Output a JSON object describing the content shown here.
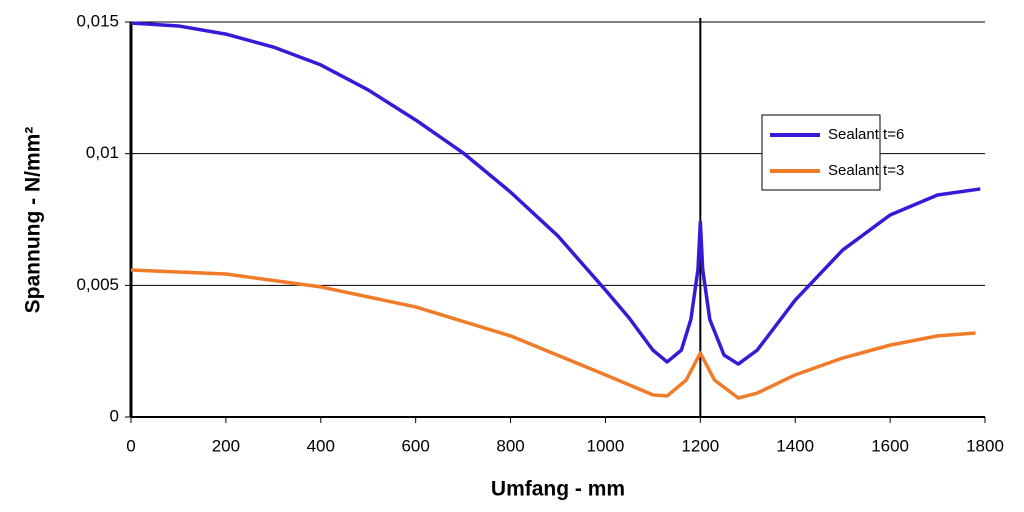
{
  "chart_data": {
    "type": "line",
    "x_label": "Umfang - mm",
    "y_label": "Spannung - N/mm²",
    "xlim": [
      0,
      1800
    ],
    "xticks": [
      0,
      200,
      400,
      600,
      800,
      1000,
      1200,
      1400,
      1600,
      1800
    ],
    "ylim": [
      0,
      0.015
    ],
    "yticks": [
      0,
      {
        "value": 0.005,
        "label": "0,005"
      },
      {
        "value": 0.01,
        "label": "0,01"
      },
      {
        "value": 0.015,
        "label": "0,015"
      }
    ],
    "grid": true,
    "reference_line_x": 1200,
    "legend": "right",
    "series": [
      {
        "name": "Sealant t=6",
        "color": "#3a18d8",
        "x": [
          0,
          100,
          200,
          300,
          400,
          500,
          600,
          700,
          800,
          900,
          1000,
          1050,
          1100,
          1130,
          1160,
          1180,
          1195,
          1200,
          1205,
          1220,
          1250,
          1280,
          1320,
          1400,
          1500,
          1600,
          1700,
          1790
        ],
        "values": [
          0.01496,
          0.01485,
          0.01454,
          0.01405,
          0.01337,
          0.01242,
          0.01128,
          0.01003,
          0.00854,
          0.00687,
          0.00482,
          0.00376,
          0.00254,
          0.00209,
          0.00254,
          0.0037,
          0.0056,
          0.0074,
          0.0056,
          0.0037,
          0.00235,
          0.00201,
          0.00254,
          0.00444,
          0.00634,
          0.00767,
          0.00843,
          0.00866
        ]
      },
      {
        "name": "Sealant t=3",
        "color": "#f07c2a",
        "x": [
          0,
          200,
          400,
          600,
          800,
          1000,
          1100,
          1130,
          1170,
          1200,
          1230,
          1280,
          1320,
          1400,
          1500,
          1600,
          1700,
          1780
        ],
        "values": [
          0.00558,
          0.00543,
          0.00494,
          0.00418,
          0.00308,
          0.0016,
          0.00084,
          0.0008,
          0.0014,
          0.00243,
          0.0014,
          0.00072,
          0.00091,
          0.0016,
          0.00224,
          0.00273,
          0.00308,
          0.00319
        ]
      }
    ]
  }
}
